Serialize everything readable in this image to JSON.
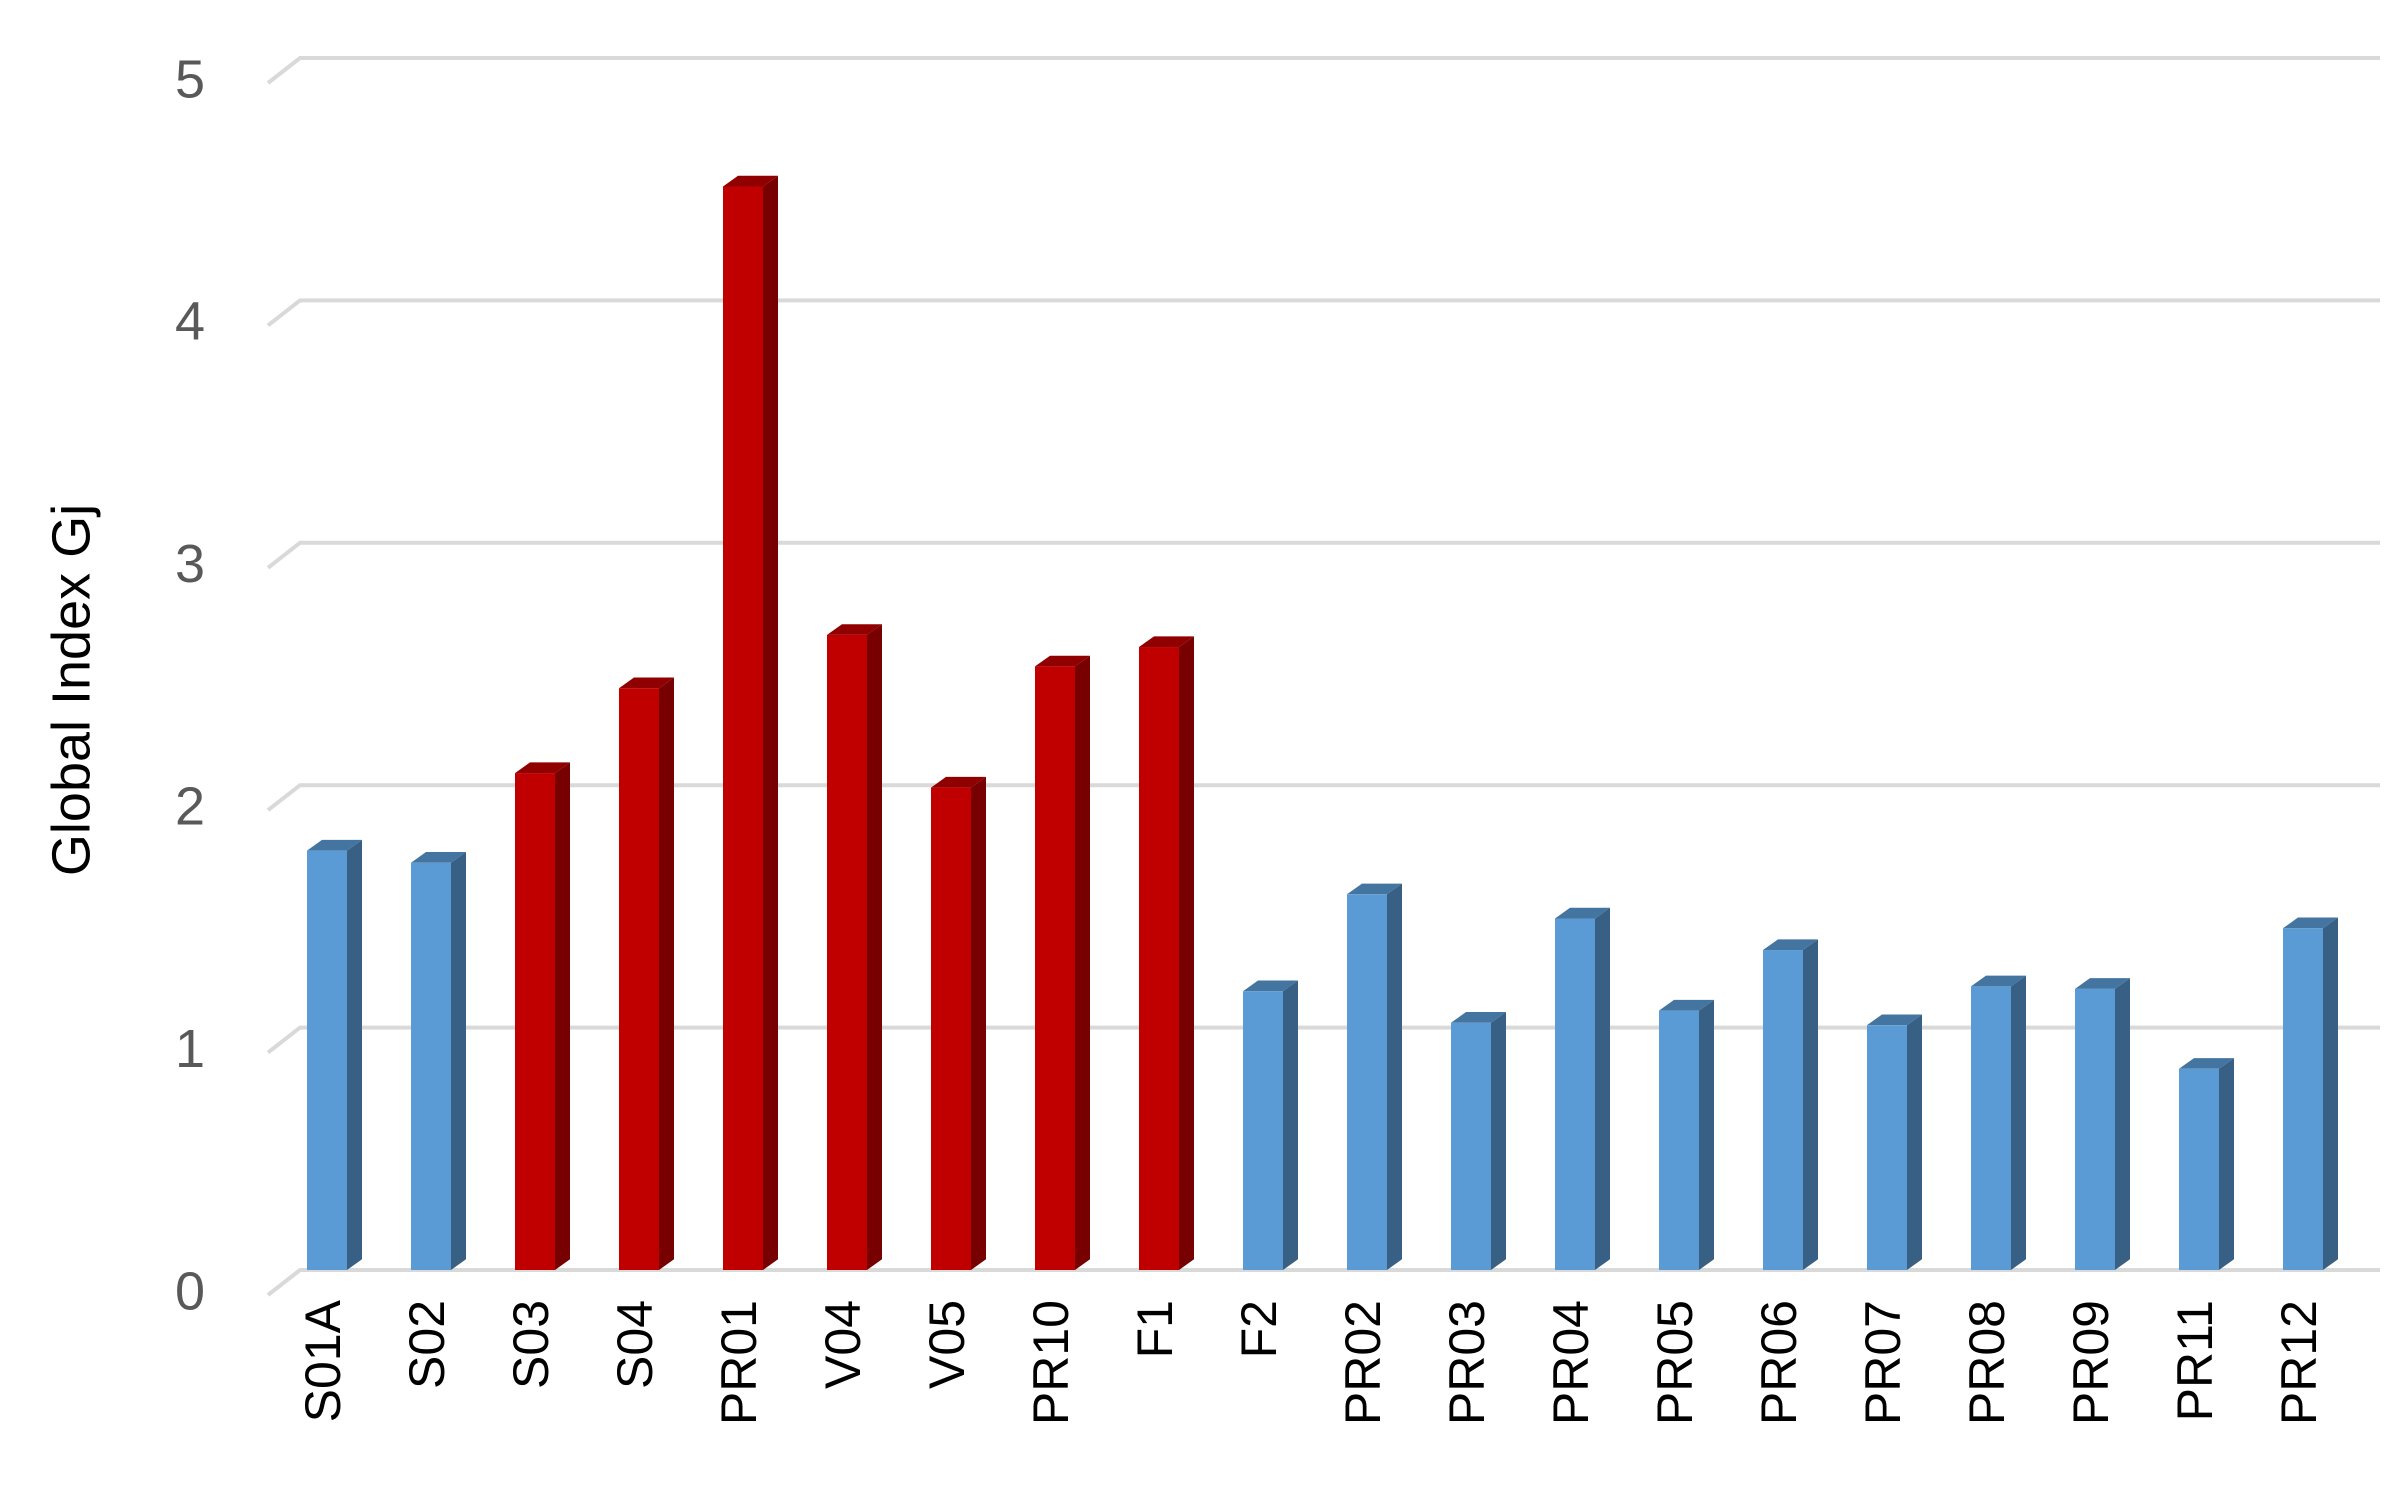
{
  "chart_data": {
    "type": "bar3d",
    "y_label": "Global Index Gj",
    "categories": [
      "S01A",
      "S02",
      "S03",
      "S04",
      "PR01",
      "V04",
      "V05",
      "PR10",
      "F1",
      "F2",
      "PR02",
      "PR03",
      "PR04",
      "PR05",
      "PR06",
      "PR07",
      "PR08",
      "PR09",
      "PR11",
      "PR12"
    ],
    "values": [
      1.73,
      1.68,
      2.05,
      2.4,
      4.47,
      2.62,
      1.99,
      2.49,
      2.57,
      1.15,
      1.55,
      1.02,
      1.45,
      1.07,
      1.32,
      1.01,
      1.17,
      1.16,
      0.83,
      1.41
    ],
    "colors": [
      "#5b9bd5",
      "#5b9bd5",
      "#c00000",
      "#c00000",
      "#c00000",
      "#c00000",
      "#c00000",
      "#c00000",
      "#c00000",
      "#5b9bd5",
      "#5b9bd5",
      "#5b9bd5",
      "#5b9bd5",
      "#5b9bd5",
      "#5b9bd5",
      "#5b9bd5",
      "#5b9bd5",
      "#5b9bd5",
      "#5b9bd5",
      "#5b9bd5"
    ],
    "ylim": [
      0,
      5
    ],
    "yticks": [
      0,
      1,
      2,
      3,
      4,
      5
    ],
    "grid": true
  }
}
